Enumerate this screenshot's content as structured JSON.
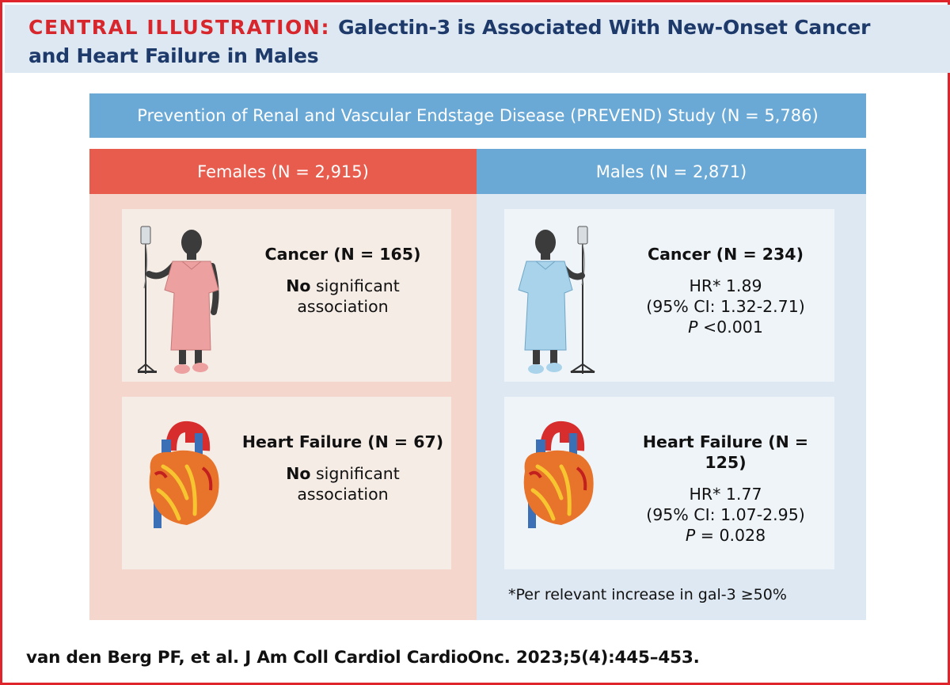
{
  "header": {
    "label": "CENTRAL ILLUSTRATION:",
    "title_line1": "Galectin-3 is Associated With New-Onset Cancer",
    "title_line2": "and Heart Failure in Males"
  },
  "study": {
    "label": "Prevention of Renal and Vascular Endstage Disease (PREVEND) Study (N = 5,786)"
  },
  "female": {
    "header": "Females (N = 2,915)",
    "cancer": {
      "title": "Cancer (N = 165)",
      "bold_word": "No",
      "result_line1_rest": " significant",
      "result_line2": "association"
    },
    "heart_failure": {
      "title": "Heart Failure (N = 67)",
      "bold_word": "No",
      "result_line1_rest": " significant",
      "result_line2": "association"
    }
  },
  "male": {
    "header": "Males (N = 2,871)",
    "cancer": {
      "title": "Cancer (N = 234)",
      "hr": "HR* 1.89",
      "ci": "(95% CI: 1.32-2.71)",
      "p_symbol": "P",
      "p_value": " <0.001"
    },
    "heart_failure": {
      "title": "Heart Failure (N = 125)",
      "hr": "HR* 1.77",
      "ci": "(95% CI: 1.07-2.95)",
      "p_symbol": "P",
      "p_value": " = 0.028"
    },
    "footnote": "*Per relevant increase in gal-3 ≥50%"
  },
  "citation": "van den Berg PF, et al. J Am Coll Cardiol CardioOnc. 2023;5(4):445–453.",
  "colors": {
    "border": "#e0242b",
    "header_bg": "#dde8f2",
    "header_text": "#1e3a6a",
    "female_header": "#e85c4d",
    "female_bg": "#f4d6cc",
    "male_header": "#6aa9d6",
    "male_bg": "#dde8f2"
  },
  "icons": [
    "female-patient-icon",
    "male-patient-icon",
    "heart-icon"
  ]
}
